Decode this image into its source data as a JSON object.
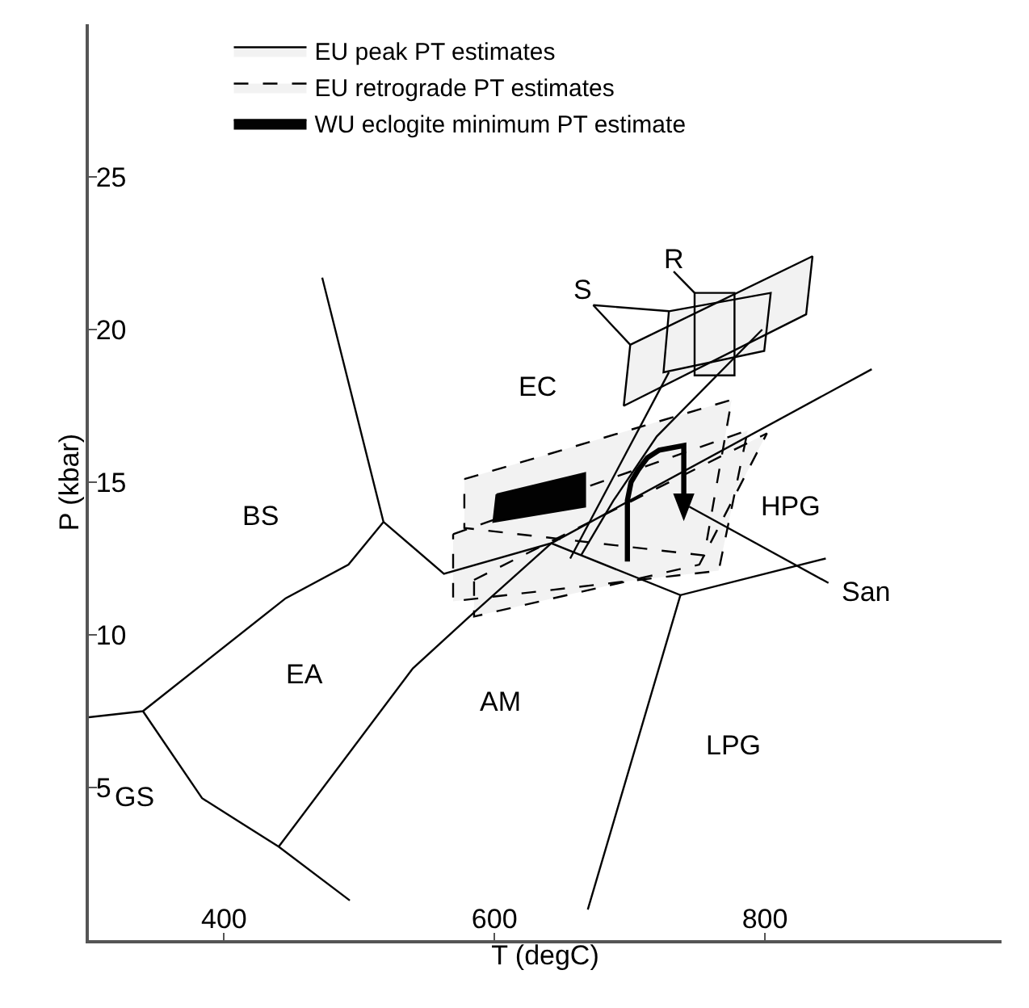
{
  "chart_data": {
    "type": "line",
    "xlabel": "T (degC)",
    "ylabel": "P (kbar)",
    "xlim": [
      300,
      975
    ],
    "ylim": [
      0,
      30
    ],
    "xticks": [
      400,
      600,
      800
    ],
    "yticks": [
      5,
      10,
      15,
      20,
      25
    ],
    "grid": false,
    "legend": "top left",
    "line_style": "solid",
    "marker": "none",
    "series": [
      {
        "name": "EU peak PT estimates",
        "type": "area",
        "line_style": "solid",
        "color": "#000000",
        "x": [
          700.4,
          835.2,
          830.5,
          695.6,
          700.4,
          null,
          729,
          804.3,
          799.5,
          725,
          729,
          null,
          748,
          777.5,
          777.5,
          748,
          748
        ],
        "values": [
          19.5,
          22.4,
          20.5,
          17.5,
          19.5,
          null,
          20.6,
          21.2,
          19.3,
          18.6,
          20.6,
          null,
          21.2,
          21.2,
          18.5,
          18.5,
          21.2
        ]
      },
      {
        "name": "EU retrograde PT estimates",
        "type": "area",
        "line_style": "dashed",
        "color": "#010101",
        "x": [
          577.7,
          775.4,
          755.1,
          577.7,
          577.7,
          null,
          569.4,
          787.3,
          765.8,
          569.4,
          569.4,
          null,
          584.9,
          801.5,
          751.5,
          584.9,
          584.9
        ],
        "values": [
          15.1,
          17.7,
          12.6,
          13.5,
          15.1,
          null,
          13.3,
          16.7,
          12.1,
          11.1,
          13.3,
          null,
          11.8,
          16.6,
          12.3,
          10.6,
          11.8
        ]
      },
      {
        "name": "WU eclogite minimum PT estimate",
        "type": "area",
        "color": "#020202",
        "x": [
          601.5,
          667,
          667,
          599.2,
          601.5
        ],
        "values": [
          14.6,
          15.3,
          14.2,
          13.7,
          14.6
        ]
      },
      {
        "color": "#030303",
        "x": [
          300,
          340,
          445.6,
          492,
          517.9,
          472.6,
          null,
          517.9,
          562.6,
          642,
          737.5,
          845,
          null,
          737.5,
          669,
          null,
          642,
          879,
          null,
          340,
          383.7,
          440.4,
          493,
          null,
          440.4,
          539.6,
          584,
          642
        ],
        "values": [
          7.3,
          7.5,
          11.2,
          12.3,
          13.7,
          21.7,
          null,
          13.7,
          12.0,
          13.0,
          11.3,
          12.5,
          null,
          11.3,
          1.0,
          null,
          13.0,
          18.7,
          null,
          7.5,
          4.65,
          3.06,
          1.3,
          null,
          3.06,
          8.9,
          10.7,
          13.0
        ]
      },
      {
        "color": "#040404",
        "x": [
          744,
          847,
          null,
          673,
          700.4,
          null,
          673,
          729,
          null,
          732.5,
          748,
          null,
          729,
          656,
          null,
          798,
          720,
          688,
          664
        ],
        "values": [
          14.2,
          11.7,
          null,
          20.8,
          19.5,
          null,
          20.8,
          20.6,
          null,
          21.9,
          21.2,
          null,
          18.6,
          12.5,
          null,
          20.0,
          16.5,
          14.4,
          12.6
        ]
      }
    ],
    "annotations": [
      "EC",
      "BS",
      "EA",
      "AM",
      "LPG",
      "GS",
      "HPG",
      "San",
      "S",
      "R"
    ]
  }
}
